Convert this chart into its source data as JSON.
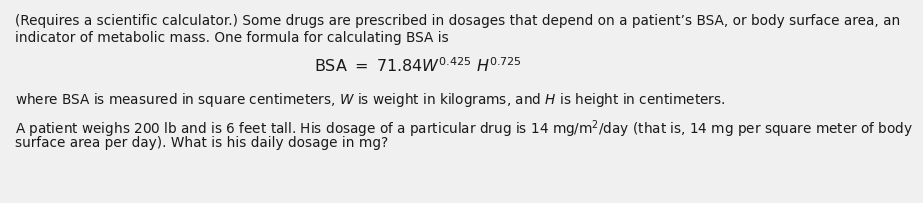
{
  "background_color": "#f0f0f0",
  "line1": "(Requires a scientific calculator.) Some drugs are prescribed in dosages that depend on a patient’s BSA, or body surface area, an",
  "line2": "indicator of metabolic mass. One formula for calculating BSA is",
  "line3_where": "where BSA is measured in square centimeters, $\\mathit{W}$ is weight in kilograms, and $\\mathit{H}$ is height in centimeters.",
  "line4": "A patient weighs 200 lb and is 6 feet tall. His dosage of a particular drug is 14 mg/m$^2$/day (that is, 14 mg per square meter of body",
  "line5": "surface area per day). What is his daily dosage in mg?",
  "formula": "$\\mathrm{BSA}\\ =\\ 71.84\\mathit{W}^{0.425}\\ \\mathit{H}^{0.725}$",
  "font_size": 9.8,
  "font_size_formula": 11.5,
  "text_color": "#1a1a1a"
}
